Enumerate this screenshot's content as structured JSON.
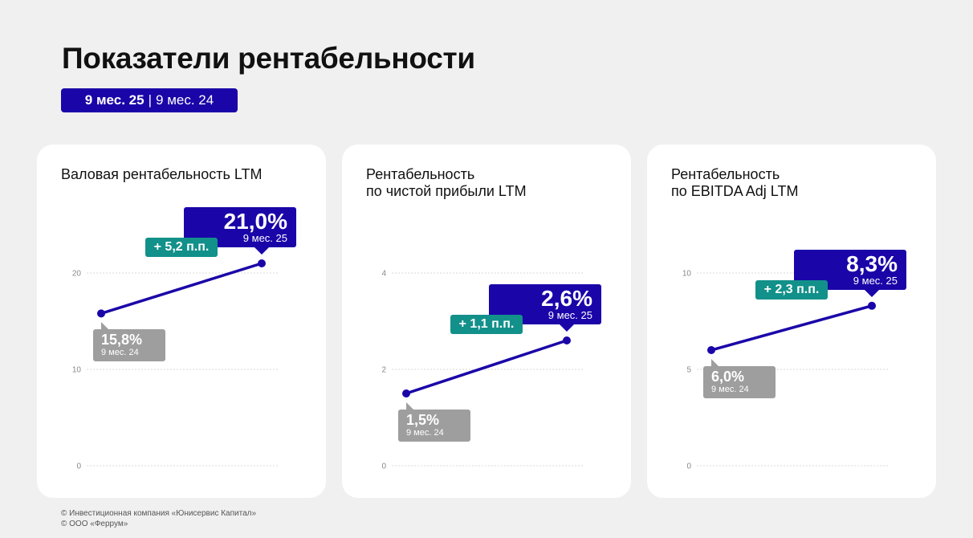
{
  "header": {
    "title": "Показатели рентабельности",
    "period_current": "9 мес. 25",
    "period_separator": "|",
    "period_previous": "9 мес. 24"
  },
  "colors": {
    "primary": "#1a05a8",
    "previous": "#9e9e9e",
    "delta": "#12908a"
  },
  "chart_data": [
    {
      "type": "line",
      "title": "Валовая рентабельность LTM",
      "categories": [
        "9 мес. 24",
        "9 мес. 25"
      ],
      "values": [
        15.8,
        21.0
      ],
      "value_labels": [
        "15,8%",
        "21,0%"
      ],
      "delta_label": "+ 5,2 п.п.",
      "ylim": [
        0,
        20
      ],
      "yticks": [
        0,
        10,
        20
      ],
      "ytick_labels": [
        "0",
        "10",
        "20"
      ],
      "grid": true
    },
    {
      "type": "line",
      "title": "Рентабельность\nпо чистой прибыли LTM",
      "categories": [
        "9 мес. 24",
        "9 мес. 25"
      ],
      "values": [
        1.5,
        2.6
      ],
      "value_labels": [
        "1,5%",
        "2,6%"
      ],
      "delta_label": "+ 1,1 п.п.",
      "ylim": [
        0,
        4
      ],
      "yticks": [
        0,
        2,
        4
      ],
      "ytick_labels": [
        "0",
        "2",
        "4"
      ],
      "grid": true
    },
    {
      "type": "line",
      "title": "Рентабельность\nпо EBITDA Adj LTM",
      "categories": [
        "9 мес. 24",
        "9 мес. 25"
      ],
      "values": [
        6.0,
        8.3
      ],
      "value_labels": [
        "6,0%",
        "8,3%"
      ],
      "delta_label": "+ 2,3 п.п.",
      "ylim": [
        0,
        10
      ],
      "yticks": [
        0,
        5,
        10
      ],
      "ytick_labels": [
        "0",
        "5",
        "10"
      ],
      "grid": true
    }
  ],
  "footer": {
    "line1": "© Инвестиционная компания «Юнисервис Капитал»",
    "line2": "© ООО «Феррум»"
  }
}
